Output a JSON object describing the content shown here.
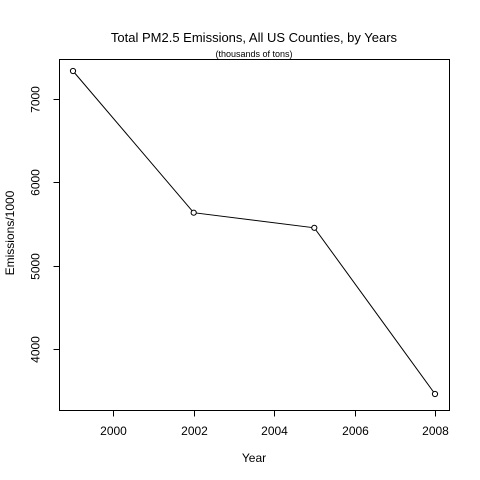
{
  "chart_data": {
    "type": "line",
    "title": "Total PM2.5 Emissions, All US Counties, by Years",
    "subtitle": "(thousands of tons)",
    "xlabel": "Year",
    "ylabel": "Emissions/1000",
    "x": [
      1999,
      2002,
      2005,
      2008
    ],
    "series": [
      {
        "values": [
          7332.97,
          5635.78,
          5454.7,
          3464.21
        ]
      }
    ],
    "xlim": [
      1999,
      2008
    ],
    "ylim": [
      3464,
      7333
    ],
    "xticks": [
      2000,
      2002,
      2004,
      2006,
      2008
    ],
    "xtick_labels": [
      "2000",
      "2002",
      "2004",
      "2006",
      "2008"
    ],
    "yticks": [
      4000,
      5000,
      6000,
      7000
    ],
    "ytick_labels": [
      "4000",
      "5000",
      "6000",
      "7000"
    ],
    "grid": false,
    "legend": "none",
    "marker": "open-circle",
    "colors": {
      "line": "#000000",
      "marker_fill": "#ffffff"
    }
  }
}
